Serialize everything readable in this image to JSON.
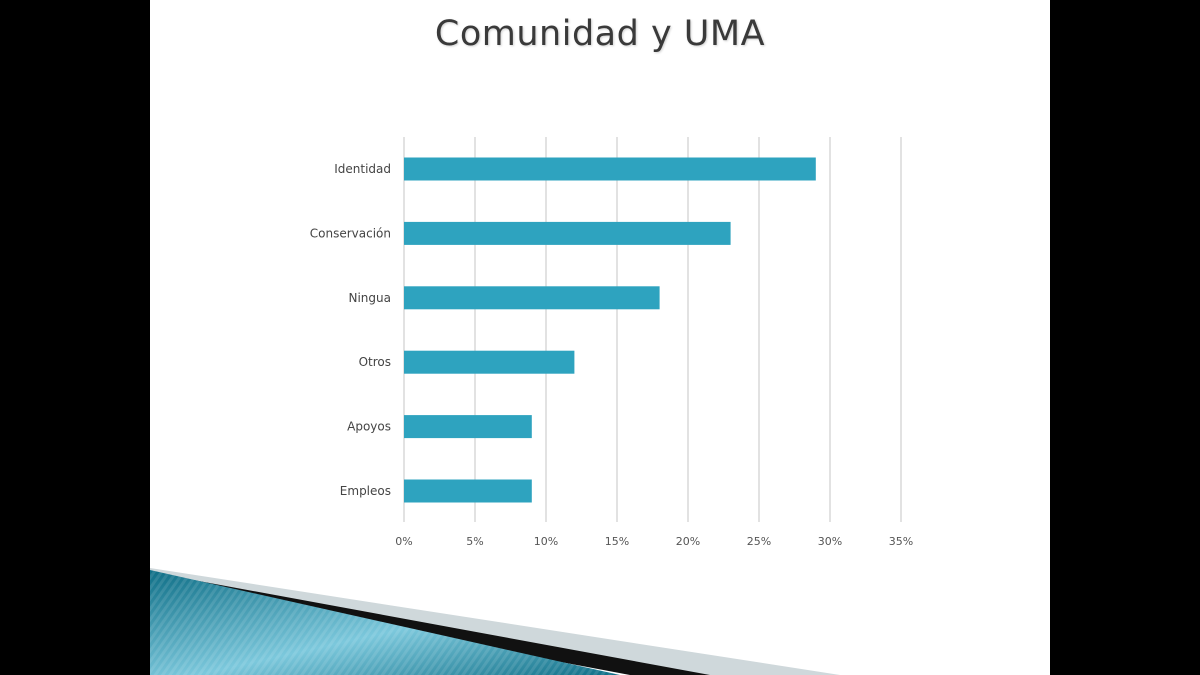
{
  "slide": {
    "title": "Comunidad y UMA"
  },
  "chart_data": {
    "type": "bar",
    "orientation": "horizontal",
    "categories": [
      "Identidad",
      "Conservación",
      "Ningua",
      "Otros",
      "Apoyos",
      "Empleos"
    ],
    "values": [
      29,
      23,
      18,
      12,
      9,
      9
    ],
    "x_ticks": [
      "0%",
      "5%",
      "10%",
      "15%",
      "20%",
      "25%",
      "30%",
      "35%"
    ],
    "xlim": [
      0,
      35
    ],
    "unit": "%",
    "grid": "vertical",
    "bar_color": "#2ea3bf",
    "grid_color": "#d9d9d9"
  },
  "decoration": {
    "band_dark": "#0e6e86",
    "band_light": "#7cc8dc",
    "band_black": "#111111",
    "band_pale": "#cfd8db"
  }
}
